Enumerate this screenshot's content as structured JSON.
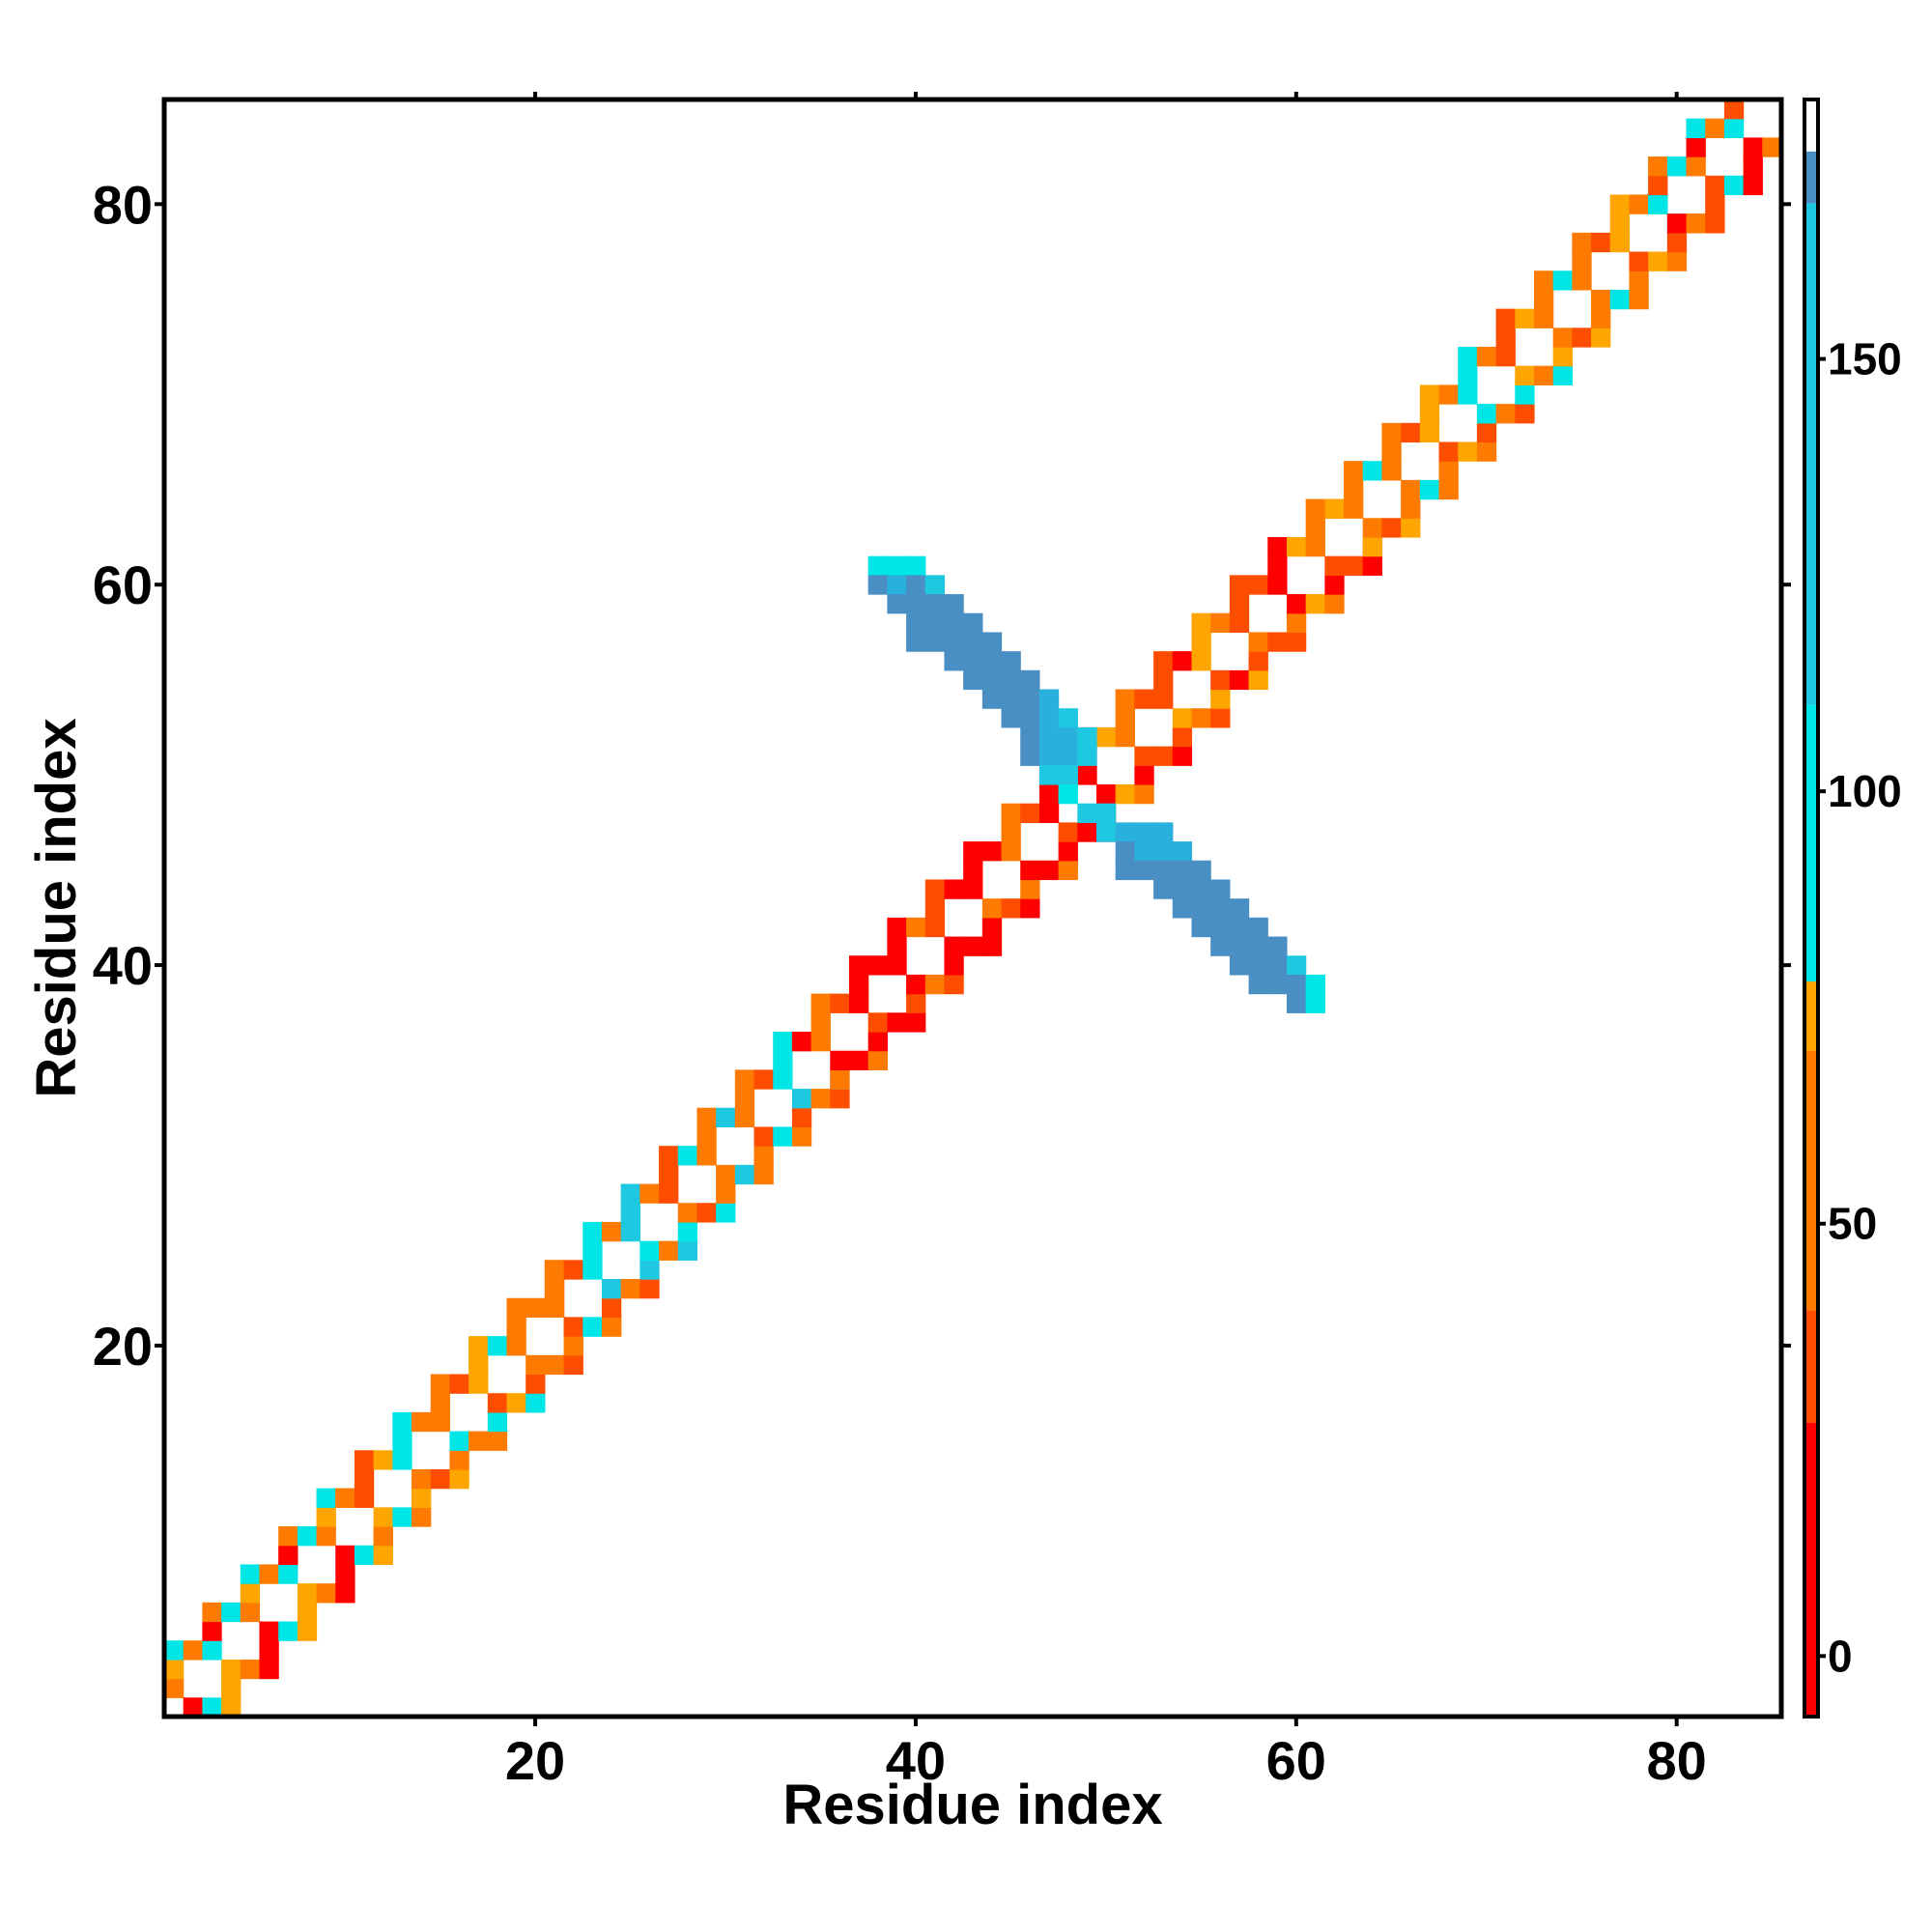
{
  "chart_data": {
    "type": "heatmap",
    "title": "",
    "xlabel": "Residue index",
    "ylabel": "Residue index",
    "xlim": [
      1,
      85
    ],
    "ylim": [
      1,
      85
    ],
    "x_ticks": [
      "20",
      "40",
      "60",
      "80"
    ],
    "y_ticks": [
      "20",
      "40",
      "60",
      "80"
    ],
    "x_tick_values": [
      20,
      40,
      60,
      80
    ],
    "y_tick_values": [
      20,
      40,
      60,
      80
    ],
    "grid": false,
    "colorbar": {
      "range": [
        -7,
        180
      ],
      "ticks": [
        "0",
        "50",
        "100",
        "150"
      ],
      "tick_values": [
        0,
        50,
        100,
        150
      ],
      "bands": [
        {
          "from": -7,
          "to": 27,
          "color": "#ff0000"
        },
        {
          "from": 27,
          "to": 40,
          "color": "#ff4d00"
        },
        {
          "from": 40,
          "to": 70,
          "color": "#ff7a00"
        },
        {
          "from": 70,
          "to": 78,
          "color": "#ffa500"
        },
        {
          "from": 78,
          "to": 110,
          "color": "#00e5e5"
        },
        {
          "from": 110,
          "to": 168,
          "color": "#1ec8e0"
        },
        {
          "from": 168,
          "to": 174,
          "color": "#4a8fc4"
        },
        {
          "from": 174,
          "to": 180,
          "color": "#ffffff"
        }
      ]
    },
    "palette": {
      "red": "#ff0000",
      "red_orange": "#ff4d00",
      "orange": "#ff7a00",
      "light_orange": "#ffa500",
      "cyan": "#00e5e5",
      "light_blue": "#1ec8e0",
      "mid_blue": "#2ab0dc",
      "steel_blue": "#4a8fc4"
    },
    "anti_diagonal_cells": [
      [
        38,
        61,
        "cyan"
      ],
      [
        39,
        61,
        "cyan"
      ],
      [
        40,
        61,
        "cyan"
      ],
      [
        38,
        60,
        "steel_blue"
      ],
      [
        39,
        60,
        "mid_blue"
      ],
      [
        40,
        60,
        "steel_blue"
      ],
      [
        41,
        60,
        "light_blue"
      ],
      [
        39,
        59,
        "steel_blue"
      ],
      [
        40,
        59,
        "steel_blue"
      ],
      [
        41,
        59,
        "steel_blue"
      ],
      [
        42,
        59,
        "steel_blue"
      ],
      [
        40,
        58,
        "steel_blue"
      ],
      [
        41,
        58,
        "steel_blue"
      ],
      [
        42,
        58,
        "steel_blue"
      ],
      [
        43,
        58,
        "steel_blue"
      ],
      [
        40,
        57,
        "steel_blue"
      ],
      [
        41,
        57,
        "steel_blue"
      ],
      [
        42,
        57,
        "steel_blue"
      ],
      [
        43,
        57,
        "steel_blue"
      ],
      [
        44,
        57,
        "steel_blue"
      ],
      [
        42,
        56,
        "steel_blue"
      ],
      [
        43,
        56,
        "steel_blue"
      ],
      [
        44,
        56,
        "steel_blue"
      ],
      [
        45,
        56,
        "steel_blue"
      ],
      [
        43,
        55,
        "steel_blue"
      ],
      [
        44,
        55,
        "steel_blue"
      ],
      [
        45,
        55,
        "steel_blue"
      ],
      [
        46,
        55,
        "steel_blue"
      ],
      [
        44,
        54,
        "steel_blue"
      ],
      [
        45,
        54,
        "steel_blue"
      ],
      [
        46,
        54,
        "steel_blue"
      ],
      [
        47,
        54,
        "mid_blue"
      ],
      [
        45,
        53,
        "steel_blue"
      ],
      [
        46,
        53,
        "steel_blue"
      ],
      [
        47,
        53,
        "mid_blue"
      ],
      [
        48,
        53,
        "light_blue"
      ],
      [
        46,
        52,
        "steel_blue"
      ],
      [
        47,
        52,
        "mid_blue"
      ],
      [
        48,
        52,
        "mid_blue"
      ],
      [
        49,
        52,
        "light_blue"
      ],
      [
        46,
        51,
        "steel_blue"
      ],
      [
        47,
        51,
        "mid_blue"
      ],
      [
        48,
        51,
        "mid_blue"
      ],
      [
        49,
        51,
        "light_blue"
      ],
      [
        47,
        50,
        "light_blue"
      ],
      [
        48,
        50,
        "light_blue"
      ],
      [
        48,
        49,
        "cyan"
      ],
      [
        49,
        48,
        "light_blue"
      ],
      [
        50,
        48,
        "light_blue"
      ],
      [
        50,
        47,
        "light_blue"
      ],
      [
        51,
        47,
        "mid_blue"
      ],
      [
        52,
        47,
        "mid_blue"
      ],
      [
        53,
        47,
        "mid_blue"
      ],
      [
        51,
        46,
        "steel_blue"
      ],
      [
        52,
        46,
        "mid_blue"
      ],
      [
        53,
        46,
        "mid_blue"
      ],
      [
        54,
        46,
        "mid_blue"
      ],
      [
        51,
        45,
        "steel_blue"
      ],
      [
        52,
        45,
        "steel_blue"
      ],
      [
        53,
        45,
        "steel_blue"
      ],
      [
        54,
        45,
        "steel_blue"
      ],
      [
        55,
        45,
        "steel_blue"
      ],
      [
        53,
        44,
        "steel_blue"
      ],
      [
        54,
        44,
        "steel_blue"
      ],
      [
        55,
        44,
        "steel_blue"
      ],
      [
        56,
        44,
        "steel_blue"
      ],
      [
        54,
        43,
        "steel_blue"
      ],
      [
        55,
        43,
        "steel_blue"
      ],
      [
        56,
        43,
        "steel_blue"
      ],
      [
        57,
        43,
        "steel_blue"
      ],
      [
        55,
        42,
        "steel_blue"
      ],
      [
        56,
        42,
        "steel_blue"
      ],
      [
        57,
        42,
        "steel_blue"
      ],
      [
        58,
        42,
        "steel_blue"
      ],
      [
        56,
        41,
        "steel_blue"
      ],
      [
        57,
        41,
        "steel_blue"
      ],
      [
        58,
        41,
        "steel_blue"
      ],
      [
        59,
        41,
        "steel_blue"
      ],
      [
        57,
        40,
        "steel_blue"
      ],
      [
        58,
        40,
        "steel_blue"
      ],
      [
        59,
        40,
        "steel_blue"
      ],
      [
        60,
        40,
        "light_blue"
      ],
      [
        58,
        39,
        "steel_blue"
      ],
      [
        59,
        39,
        "steel_blue"
      ],
      [
        60,
        39,
        "steel_blue"
      ],
      [
        61,
        39,
        "cyan"
      ],
      [
        60,
        38,
        "steel_blue"
      ],
      [
        61,
        38,
        "cyan"
      ]
    ],
    "diagonal_band": [
      {
        "from": 1,
        "to": 10,
        "colors": [
          "orange",
          "light_orange",
          "cyan",
          "red"
        ]
      },
      {
        "from": 10,
        "to": 21,
        "colors": [
          "cyan",
          "orange",
          "light_orange",
          "orange",
          "red_orange"
        ]
      },
      {
        "from": 21,
        "to": 34,
        "colors": [
          "orange",
          "cyan",
          "light_blue",
          "red_orange",
          "orange"
        ]
      },
      {
        "from": 34,
        "to": 48,
        "colors": [
          "red",
          "red_orange",
          "red",
          "orange",
          "red"
        ]
      },
      {
        "from": 49,
        "to": 62,
        "colors": [
          "red_orange",
          "red",
          "orange",
          "red_orange",
          "light_orange"
        ]
      },
      {
        "from": 62,
        "to": 79,
        "colors": [
          "orange",
          "light_orange",
          "cyan",
          "red_orange",
          "orange"
        ]
      },
      {
        "from": 79,
        "to": 85,
        "colors": [
          "cyan",
          "red_orange",
          "orange",
          "red"
        ]
      }
    ]
  }
}
